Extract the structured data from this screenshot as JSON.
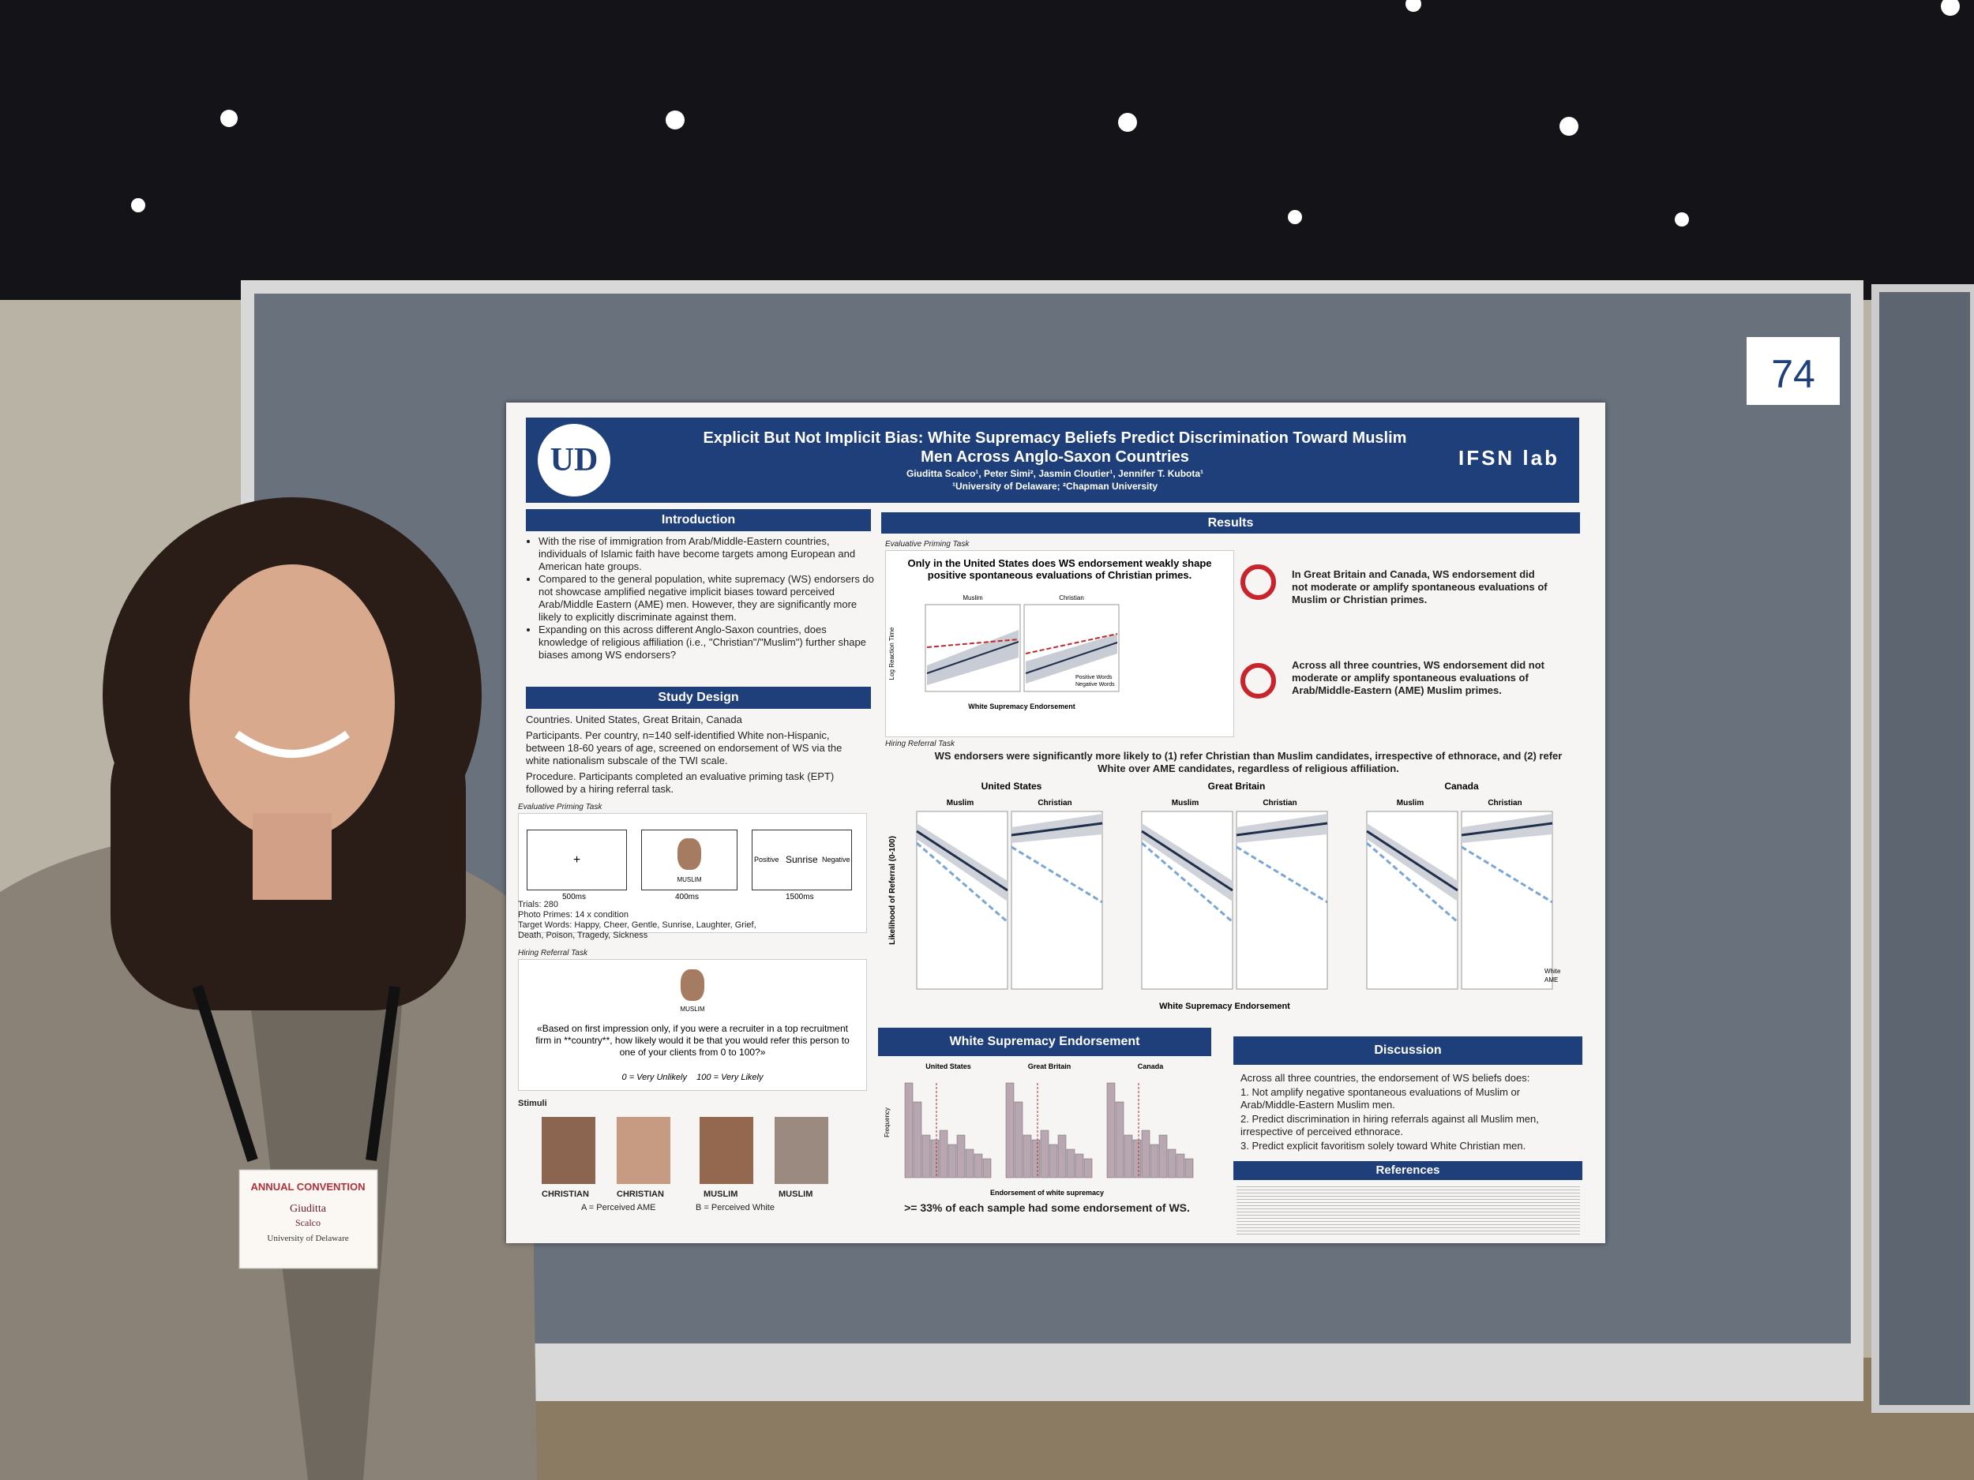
{
  "board_number": "74",
  "poster": {
    "logo_left": "UD",
    "logo_right": "IFSN lab",
    "title": "Explicit But Not Implicit Bias: White Supremacy Beliefs Predict Discrimination Toward Muslim Men Across Anglo-Saxon Countries",
    "authors": "Giuditta Scalco¹, Peter Simi², Jasmin Cloutier¹, Jennifer T. Kubota¹",
    "affiliations": "¹University of Delaware; ²Chapman University",
    "introduction": {
      "heading": "Introduction",
      "bullets": [
        "With the rise of immigration from Arab/Middle-Eastern countries, individuals of Islamic faith have become targets among European and American hate groups.",
        "Compared to the general population, white supremacy (WS) endorsers do not showcase amplified negative implicit biases toward perceived Arab/Middle Eastern (AME) men. However, they are significantly more likely to explicitly discriminate against them.",
        "Expanding on this across different Anglo-Saxon countries, does knowledge of religious affiliation (i.e., \"Christian\"/\"Muslim\") further shape biases among WS endorsers?"
      ]
    },
    "study_design": {
      "heading": "Study Design",
      "paragraphs": [
        "Countries. United States, Great Britain, Canada",
        "Participants. Per country, n=140 self-identified White non-Hispanic, between 18-60 years of age, screened on endorsement of WS via the white nationalism subscale of the TWI scale.",
        "Procedure. Participants completed an evaluative priming task (EPT) followed by a hiring referral task."
      ],
      "ept_label": "Evaluative Priming Task",
      "ept_steps": [
        "500ms",
        "400ms",
        "1500ms"
      ],
      "ept_prime": "MUSLIM",
      "ept_target": "Sunrise",
      "ept_positive": "Positive",
      "ept_negative": "Negative",
      "ept_details": [
        "Trials: 280",
        "Photo Primes: 14 x condition",
        "Target Words: Happy, Cheer, Gentle, Sunrise, Laughter, Grief, Death, Poison, Tragedy, Sickness"
      ],
      "hrt_label": "Hiring Referral Task",
      "hrt_prime": "MUSLIM",
      "hrt_quote": "«Based on first impression only, if you were a recruiter in a top recruitment firm in **country**, how likely would it be that you would refer this person to one of your clients from 0 to 100?»",
      "hrt_scale": "0 = Very Unlikely    100 = Very Likely",
      "stimuli_label": "Stimuli",
      "stimuli": [
        "CHRISTIAN",
        "CHRISTIAN",
        "MUSLIM",
        "MUSLIM"
      ],
      "stimuli_legend": [
        "A = Perceived AME",
        "B = Perceived White"
      ]
    },
    "results": {
      "heading": "Results",
      "ept_label": "Evaluative Priming Task",
      "ept_finding": "Only in the United States does WS endorsement weakly shape positive spontaneous evaluations of Christian primes.",
      "ept_panels": [
        "Muslim",
        "Christian"
      ],
      "ept_ylabel": "Log Reaction Time",
      "ept_xlabel": "White Supremacy Endorsement",
      "ept_legend": [
        "Positive Words",
        "Negative Words"
      ],
      "notes": [
        "In Great Britain and Canada, WS endorsement did not moderate or amplify spontaneous evaluations of Muslim or Christian primes.",
        "Across all three countries, WS endorsement did not moderate or amplify spontaneous evaluations of Arab/Middle-Eastern (AME) Muslim primes."
      ],
      "hrt_label": "Hiring Referral Task",
      "hrt_finding": "WS endorsers were significantly more likely to (1) refer Christian than Muslim candidates, irrespective of ethnorace, and (2) refer White over AME candidates, regardless of religious affiliation.",
      "countries": [
        "United States",
        "Great Britain",
        "Canada"
      ],
      "hrt_ylabel": "Likelihood of Referral (0-100)",
      "hrt_xlabel": "White Supremacy Endorsement",
      "hrt_panels": [
        "Muslim",
        "Christian"
      ],
      "hrt_legend": [
        "White",
        "AME"
      ]
    },
    "ws_endorsement": {
      "heading": "White Supremacy Endorsement",
      "countries": [
        "United States",
        "Great Britain",
        "Canada"
      ],
      "ylabel": "Frequency",
      "xlabel": "Endorsement of white supremacy",
      "summary": ">= 33% of each sample had some endorsement of WS."
    },
    "discussion": {
      "heading": "Discussion",
      "intro": "Across all three countries, the endorsement of WS beliefs does:",
      "points": [
        "1. Not amplify negative spontaneous evaluations of Muslim or Arab/Middle-Eastern Muslim men.",
        "2. Predict discrimination in hiring referrals against all Muslim men, irrespective of perceived ethnorace.",
        "3. Predict explicit favoritism solely toward White Christian men."
      ]
    },
    "references": {
      "heading": "References"
    }
  },
  "badge": {
    "event": "ANNUAL CONVENTION",
    "first_name": "Giuditta",
    "last_name": "Scalco",
    "affiliation": "University of Delaware"
  }
}
